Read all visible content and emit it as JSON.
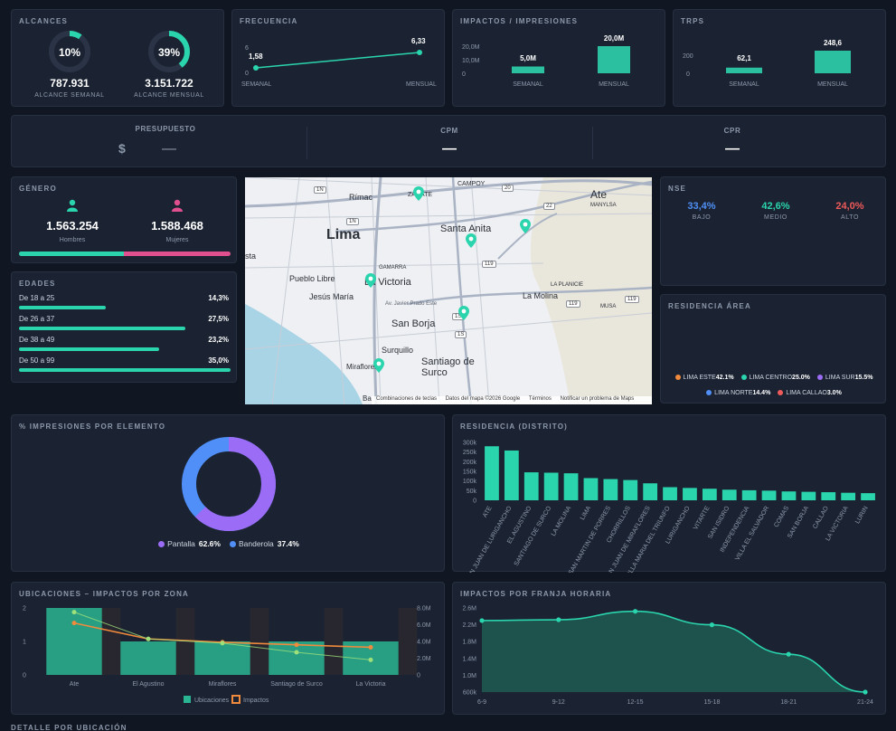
{
  "alcances": {
    "title": "ALCANCES",
    "semanal_pct": "10%",
    "semanal_fraction": 0.1,
    "semanal_value": "787.931",
    "semanal_label": "ALCANCE SEMANAL",
    "mensual_pct": "39%",
    "mensual_fraction": 0.39,
    "mensual_value": "3.151.722",
    "mensual_label": "ALCANCE MENSUAL"
  },
  "frecuencia": {
    "title": "FRECUENCIA",
    "tick_top": "6",
    "tick_bottom": "0",
    "p1_value": "1,58",
    "p2_value": "6,33",
    "p1_label": "SEMANAL",
    "p2_label": "MENSUAL"
  },
  "impactos": {
    "title": "IMPACTOS / IMPRESIONES",
    "ticks": [
      "20,0M",
      "10,0M",
      "0"
    ],
    "b1_value": "5,0M",
    "b2_value": "20,0M",
    "b1_raw": 5.0,
    "b2_raw": 20.0,
    "b1_label": "SEMANAL",
    "b2_label": "MENSUAL"
  },
  "trps": {
    "title": "TRPS",
    "ticks": [
      "200",
      "0"
    ],
    "b1_value": "62,1",
    "b2_value": "248,6",
    "b1_raw": 62.1,
    "b2_raw": 248.6,
    "b1_label": "SEMANAL",
    "b2_label": "MENSUAL"
  },
  "presupuesto": {
    "title": "PRESUPUESTO",
    "currency": "$",
    "value": "—",
    "cpm_title": "CPM",
    "cpm_value": "—",
    "cpr_title": "CPR",
    "cpr_value": "—"
  },
  "genero": {
    "title": "GÉNERO",
    "hombres_value": "1.563.254",
    "hombres_label": "Hombres",
    "mujeres_value": "1.588.468",
    "mujeres_label": "Mujeres",
    "hombres_share": 0.496,
    "hombres_color": "#2ad4ad",
    "mujeres_color": "#e0508f"
  },
  "edades": {
    "title": "EDADES",
    "rows": [
      {
        "label": "De 18 a 25",
        "pct": "14,3%",
        "value": 14.3
      },
      {
        "label": "De 26 a 37",
        "pct": "27,5%",
        "value": 27.5
      },
      {
        "label": "De 38 a 49",
        "pct": "23,2%",
        "value": 23.2
      },
      {
        "label": "De 50 a 99",
        "pct": "35,0%",
        "value": 35.0
      }
    ]
  },
  "map": {
    "labels": [
      "Rímac",
      "ZÁRATE",
      "CAMPOY",
      "Ate",
      "MANYLSA",
      "Lima",
      "Santa Anita",
      "sta",
      "GAMARRA",
      "Pueblo Libre",
      "La Victoria",
      "Jesús María",
      "LA PLANICIE",
      "La Molina",
      "MUSA",
      "Av. Javier Prado Este",
      "San Borja",
      "Surquillo",
      "Santiago de Surco",
      "Miraflores",
      "Ba"
    ],
    "shields": [
      "1N",
      "1N",
      "20",
      "22",
      "119",
      "1S",
      "1S",
      "119",
      "119"
    ],
    "footer": [
      "Combinaciones de teclas",
      "Datos del mapa ©2026 Google",
      "Términos",
      "Notificar un problema de Maps"
    ]
  },
  "nse": {
    "title": "NSE",
    "items": [
      {
        "value": "33,4%",
        "label": "BAJO",
        "color": "#4f8ff7"
      },
      {
        "value": "42,6%",
        "label": "MEDIO",
        "color": "#2ad4ad"
      },
      {
        "value": "24,0%",
        "label": "ALTO",
        "color": "#ef5a5a"
      }
    ]
  },
  "residencia_area": {
    "title": "RESIDENCIA ÁREA",
    "items": [
      {
        "name": "LIMA ESTE",
        "pct": "42.1%",
        "color": "#f08a3c"
      },
      {
        "name": "LIMA CENTRO",
        "pct": "25.0%",
        "color": "#2ad4ad"
      },
      {
        "name": "LIMA SUR",
        "pct": "15.5%",
        "color": "#9b6cf5"
      },
      {
        "name": "LIMA NORTE",
        "pct": "14.4%",
        "color": "#4f8ff7"
      },
      {
        "name": "LIMA CALLAO",
        "pct": "3.0%",
        "color": "#ef5a5a"
      }
    ]
  },
  "impresiones_elemento": {
    "title": "% IMPRESIONES POR ELEMENTO",
    "items": [
      {
        "name": "Pantalla",
        "pct": "62.6%",
        "value": 62.6,
        "color": "#9b6cf5"
      },
      {
        "name": "Banderola",
        "pct": "37.4%",
        "value": 37.4,
        "color": "#4f8ff7"
      }
    ]
  },
  "residencia_distrito": {
    "title": "RESIDENCIA (DISTRITO)",
    "chart_data": {
      "type": "bar",
      "ylabel": "",
      "ylim": [
        0,
        300000
      ],
      "yticks": [
        "300k",
        "250k",
        "200k",
        "150k",
        "100k",
        "50k",
        "0"
      ],
      "categories": [
        "ATE",
        "SAN JUAN DE LURIGANCHO",
        "EL AGUSTINO",
        "SANTIAGO DE SURCO",
        "LA MOLINA",
        "LIMA",
        "SAN MARTIN DE PORRES",
        "CHORRILLOS",
        "SAN JUAN DE MIRAFLORES",
        "VILLA MARIA DEL TRIUNFO",
        "LURIGANCHO",
        "VITARTE",
        "SAN ISIDRO",
        "INDEPENDENCIA",
        "VILLA EL SALVADOR",
        "COMAS",
        "SAN BORJA",
        "CALLAO",
        "LA VICTORIA",
        "LURIN"
      ],
      "values": [
        280000,
        258000,
        145000,
        143000,
        140000,
        115000,
        110000,
        105000,
        88000,
        68000,
        64000,
        60000,
        55000,
        52000,
        50000,
        46000,
        44000,
        42000,
        39000,
        37000
      ],
      "color": "#2ad4ad"
    }
  },
  "ubicaciones": {
    "title": "UBICACIONES – IMPACTOS POR ZONA",
    "chart_data": {
      "type": "bar",
      "categories": [
        "Ate",
        "El Agustino",
        "Miraflores",
        "Santiago de Surco",
        "La Victoria"
      ],
      "yticks_left": [
        "2",
        "1",
        "0"
      ],
      "yticks_right": [
        "8.0M",
        "6.0M",
        "4.0M",
        "2.0M",
        "0"
      ],
      "ylim_left": [
        0,
        2
      ],
      "ylim_right": [
        0,
        8000000
      ],
      "series": [
        {
          "name": "Ubicaciones",
          "axis": "left",
          "values": [
            2,
            1,
            1,
            1,
            1
          ],
          "color": "#2ab592"
        },
        {
          "name": "Impactos",
          "axis": "right",
          "values": [
            6200000,
            4300000,
            3900000,
            3600000,
            3300000
          ],
          "color": "#f08a3c"
        }
      ],
      "secondary_line": [
        7500000,
        4300000,
        3800000,
        2700000,
        1800000
      ],
      "secondary_color": "#9ee07a",
      "legend": [
        "Ubicaciones",
        "Impactos"
      ]
    }
  },
  "franja": {
    "title": "IMPACTOS POR FRANJA HORARIA",
    "chart_data": {
      "type": "area",
      "categories": [
        "6-9",
        "9-12",
        "12-15",
        "15-18",
        "18-21",
        "21-24"
      ],
      "values": [
        2300000,
        2320000,
        2520000,
        2200000,
        1500000,
        600000
      ],
      "ylim": [
        600000,
        2600000
      ],
      "yticks": [
        "2.6M",
        "2.2M",
        "1.8M",
        "1.4M",
        "1.0M",
        "600k"
      ],
      "color": "#2ad4ad"
    }
  },
  "detalle": {
    "title": "DETALLE POR UBICACIÓN"
  }
}
